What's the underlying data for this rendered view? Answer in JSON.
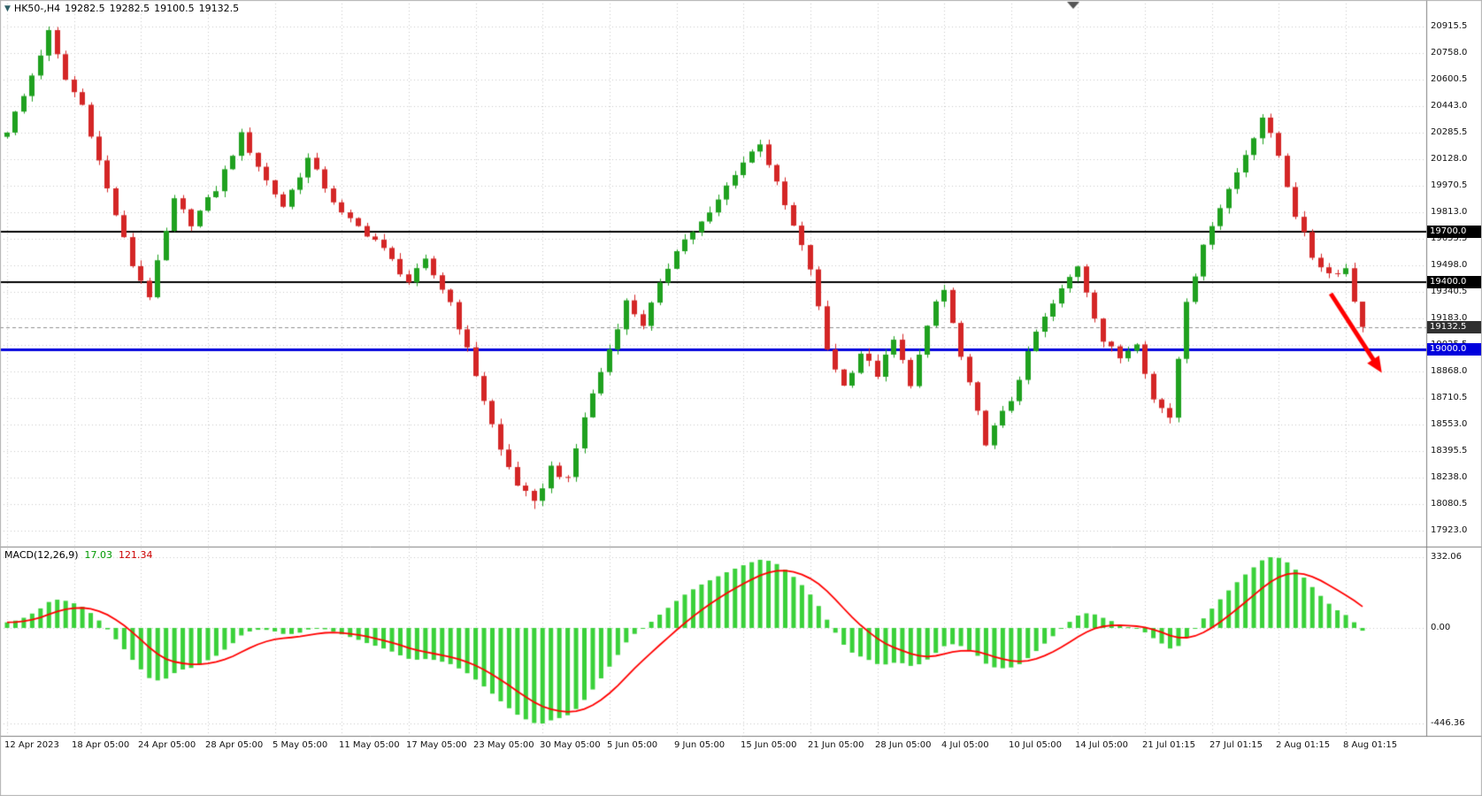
{
  "colors": {
    "background": "#ffffff",
    "grid": "#c9c9c9",
    "bull_candle": "#1fa11f",
    "bear_candle": "#d42626",
    "histogram": "#3ad13a",
    "signal_line": "#ff0000",
    "black_level": "#000000",
    "blue_level": "#0000dd",
    "current_price_line": "#909090",
    "arrow": "#ff0000",
    "axis_border": "#808080",
    "shift_marker": "#555555"
  },
  "chart_data": [
    {
      "type": "candlestick",
      "symbol": "HK50-",
      "timeframe": "H4",
      "symbol_label": "HK50-,H4",
      "current_bar": {
        "open": "19282.5",
        "high": "19282.5",
        "low": "19100.5",
        "close": "19132.5"
      },
      "current_price": 19132.5,
      "bars_total": 163,
      "bars_per_label": 8,
      "x_labels": [
        "12 Apr 2023",
        "18 Apr 05:00",
        "24 Apr 05:00",
        "28 Apr 05:00",
        "5 May 05:00",
        "11 May 05:00",
        "17 May 05:00",
        "23 May 05:00",
        "30 May 05:00",
        "5 Jun 05:00",
        "9 Jun 05:00",
        "15 Jun 05:00",
        "21 Jun 05:00",
        "28 Jun 05:00",
        "4 Jul 05:00",
        "10 Jul 05:00",
        "14 Jul 05:00",
        "21 Jul 01:15",
        "27 Jul 01:15",
        "2 Aug 01:15",
        "8 Aug 01:15"
      ],
      "y_ticks": [
        "20915.5",
        "20758.0",
        "20600.5",
        "20443.0",
        "20285.5",
        "20128.0",
        "19970.5",
        "19813.0",
        "19655.5",
        "19498.0",
        "19340.5",
        "19183.0",
        "19025.5",
        "18868.0",
        "18710.5",
        "18553.0",
        "18395.5",
        "18238.0",
        "18080.5",
        "17923.0"
      ],
      "y_tick_step": 157.5,
      "ylim": [
        17900.5,
        20940.0
      ],
      "key_levels": [
        {
          "label": "19700.0",
          "price": 19700.0,
          "color": "#000000",
          "width": 2,
          "dashed": false,
          "tag_bg": "#000000"
        },
        {
          "label": "19400.0",
          "price": 19400.0,
          "color": "#000000",
          "width": 2,
          "dashed": false,
          "tag_bg": "#000000"
        },
        {
          "label": "19132.5",
          "price": 19132.5,
          "color": "#909090",
          "width": 1,
          "dashed": true,
          "tag_bg": "#303030"
        },
        {
          "label": "19000.0",
          "price": 19000.0,
          "color": "#0000dd",
          "width": 3,
          "dashed": false,
          "tag_bg": "#0000dd"
        }
      ],
      "swing_points": [
        [
          0,
          20300
        ],
        [
          2,
          20500
        ],
        [
          5,
          20880
        ],
        [
          7,
          20600
        ],
        [
          9,
          20450
        ],
        [
          12,
          19950
        ],
        [
          15,
          19500
        ],
        [
          17,
          19320
        ],
        [
          20,
          19880
        ],
        [
          22,
          19750
        ],
        [
          25,
          19950
        ],
        [
          28,
          20270
        ],
        [
          31,
          20000
        ],
        [
          33,
          19850
        ],
        [
          36,
          20130
        ],
        [
          40,
          19800
        ],
        [
          44,
          19650
        ],
        [
          48,
          19400
        ],
        [
          50,
          19520
        ],
        [
          53,
          19280
        ],
        [
          56,
          18850
        ],
        [
          59,
          18400
        ],
        [
          61,
          18200
        ],
        [
          63,
          18080
        ],
        [
          65,
          18300
        ],
        [
          67,
          18220
        ],
        [
          69,
          18600
        ],
        [
          72,
          19000
        ],
        [
          74,
          19280
        ],
        [
          76,
          19150
        ],
        [
          80,
          19600
        ],
        [
          84,
          19800
        ],
        [
          87,
          20050
        ],
        [
          90,
          20230
        ],
        [
          93,
          19850
        ],
        [
          96,
          19480
        ],
        [
          98,
          19000
        ],
        [
          100,
          18780
        ],
        [
          102,
          18980
        ],
        [
          104,
          18850
        ],
        [
          106,
          19050
        ],
        [
          108,
          18800
        ],
        [
          111,
          19280
        ],
        [
          112,
          19350
        ],
        [
          114,
          18950
        ],
        [
          117,
          18450
        ],
        [
          120,
          18700
        ],
        [
          123,
          19100
        ],
        [
          126,
          19350
        ],
        [
          128,
          19500
        ],
        [
          131,
          19050
        ],
        [
          133,
          18950
        ],
        [
          135,
          19050
        ],
        [
          137,
          18700
        ],
        [
          139,
          18600
        ],
        [
          141,
          19300
        ],
        [
          144,
          19750
        ],
        [
          147,
          20050
        ],
        [
          150,
          20380
        ],
        [
          152,
          20150
        ],
        [
          154,
          19800
        ],
        [
          156,
          19550
        ],
        [
          158,
          19450
        ],
        [
          160,
          19480
        ],
        [
          161,
          19282.5
        ],
        [
          162,
          19132.5
        ]
      ],
      "extremes": {
        "high": 20915.5,
        "low": 18052.0
      },
      "annotations": [
        {
          "type": "arrow",
          "color": "#ff0000",
          "from_bar": 158.2,
          "from_price": 19330,
          "to_bar": 164.3,
          "to_price": 18860
        }
      ]
    },
    {
      "type": "macd",
      "label": "MACD(12,26,9)",
      "macd_value": "17.03",
      "signal_value": "121.34",
      "fast": 12,
      "slow": 26,
      "signal": 9,
      "y_ticks": [
        "332.06",
        "0.00",
        "-446.36"
      ],
      "y_tick_values": [
        332.06,
        0.0,
        -446.36
      ],
      "histogram_color": "#3ad13a",
      "signal_color": "#ff0000"
    }
  ]
}
